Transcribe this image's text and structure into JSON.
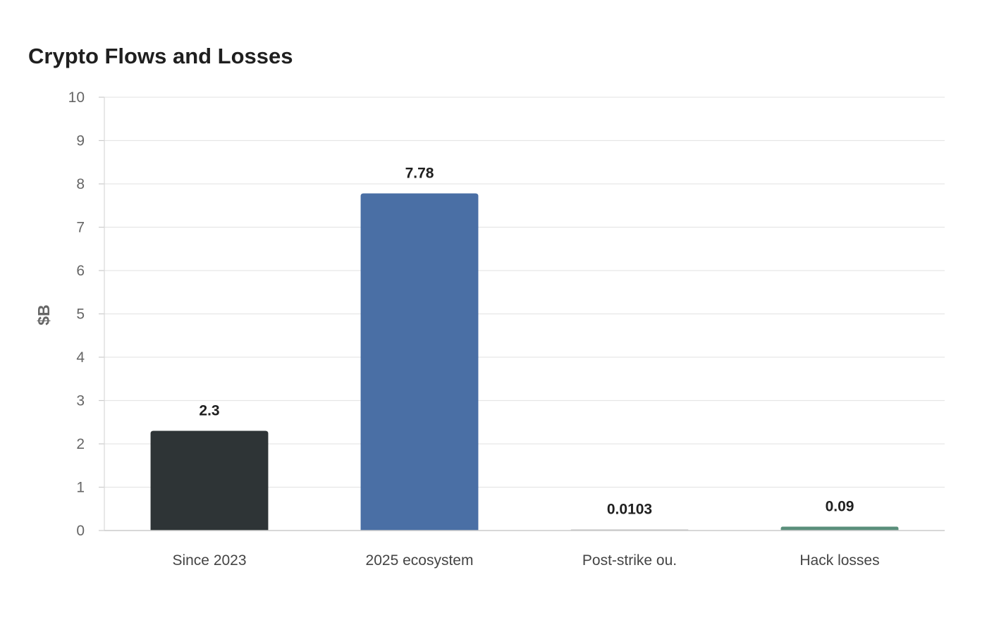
{
  "chart_data": {
    "type": "bar",
    "title": "Crypto Flows and Losses",
    "xlabel": "",
    "ylabel": "$B",
    "ylim": [
      0,
      10
    ],
    "yticks": [
      0,
      1,
      2,
      3,
      4,
      5,
      6,
      7,
      8,
      9,
      10
    ],
    "grid": true,
    "legend": "none",
    "categories": [
      "Since 2023",
      "2025 ecosystem",
      "Post-strike ou.",
      "Hack losses"
    ],
    "values": [
      2.3,
      7.78,
      0.0103,
      0.09
    ],
    "value_labels": [
      "2.3",
      "7.78",
      "0.0103",
      "0.09"
    ],
    "colors": [
      "#2e3436",
      "#4a6fa5",
      "#bdbdbd",
      "#5a8f7b"
    ]
  }
}
